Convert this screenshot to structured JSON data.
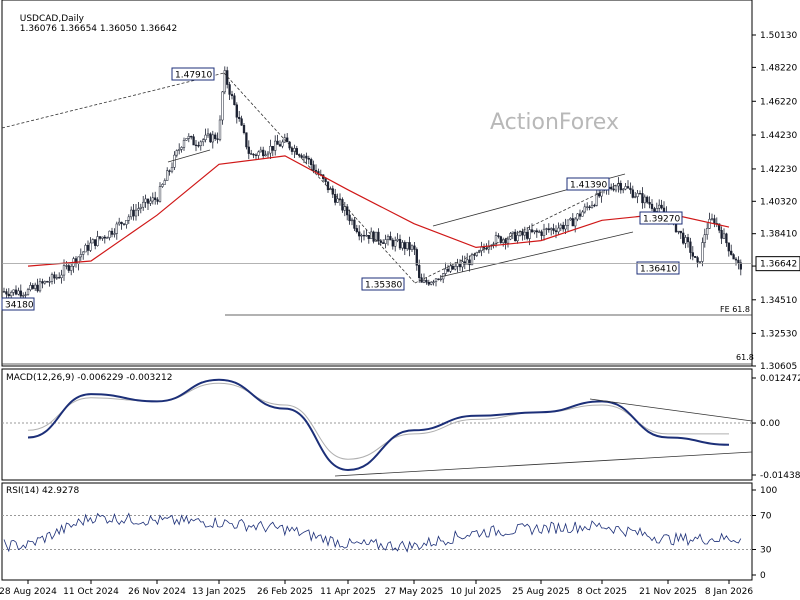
{
  "header": {
    "symbol": "USDCAD,Daily",
    "ohlc": "1.36076 1.36654 1.36050 1.36642"
  },
  "watermark": "ActionForex",
  "chart_data": [
    {
      "type": "candlestick",
      "title": "USDCAD,Daily",
      "price_axis": {
        "ticks": [
          "1.50130",
          "1.48220",
          "1.46220",
          "1.44230",
          "1.42230",
          "1.40320",
          "1.38410",
          "1.36500",
          "1.34510",
          "1.32530",
          "1.30605"
        ],
        "tick_values": [
          1.5013,
          1.4822,
          1.4622,
          1.4423,
          1.4223,
          1.4032,
          1.3841,
          1.365,
          1.3451,
          1.3253,
          1.30605
        ],
        "current_price": "1.36642",
        "current_value": 1.36642,
        "range": [
          1.303,
          1.518
        ]
      },
      "x_axis": {
        "labels": [
          "28 Aug 2024",
          "11 Oct 2024",
          "26 Nov 2024",
          "13 Jan 2025",
          "26 Feb 2025",
          "11 Apr 2025",
          "27 May 2025",
          "10 Jul 2025",
          "25 Aug 2025",
          "8 Oct 2025",
          "21 Nov 2025",
          "8 Jan 2026"
        ]
      },
      "price_path": [
        [
          "28 Aug 2024",
          1.35
        ],
        [
          "Sep 2024",
          1.359
        ],
        [
          "11 Oct 2024",
          1.378
        ],
        [
          "Oct 2024",
          1.385
        ],
        [
          "Nov 2024",
          1.4
        ],
        [
          "26 Nov 2024",
          1.405
        ],
        [
          "Dec 2024",
          1.442
        ],
        [
          "Dec 2024",
          1.438
        ],
        [
          "13 Jan 2025",
          1.442
        ],
        [
          "3 Feb 2025",
          1.4791
        ],
        [
          "Feb 2025",
          1.43
        ],
        [
          "26 Feb 2025",
          1.438
        ],
        [
          "Mar 2025",
          1.43
        ],
        [
          "11 Apr 2025",
          1.395
        ],
        [
          "Apr 2025",
          1.385
        ],
        [
          "27 May 2025",
          1.375
        ],
        [
          "Jun 2025",
          1.3538
        ],
        [
          "10 Jul 2025",
          1.37
        ],
        [
          "Jul 2025",
          1.38
        ],
        [
          "25 Aug 2025",
          1.385
        ],
        [
          "Sep 2025",
          1.39
        ],
        [
          "8 Oct 2025",
          1.408
        ],
        [
          "Oct 2025",
          1.4139
        ],
        [
          "21 Nov 2025",
          1.395
        ],
        [
          "Dec 2025",
          1.375
        ],
        [
          "Dec 2025",
          1.3641
        ],
        [
          "Dec 2025",
          1.388
        ],
        [
          "Dec 2025",
          1.3927
        ],
        [
          "8 Jan 2026",
          1.376
        ],
        [
          "Jan 2026",
          1.365
        ],
        [
          "Jan 2026",
          1.3664
        ]
      ],
      "moving_average": [
        [
          "28 Aug 2024",
          1.365
        ],
        [
          "11 Oct 2024",
          1.368
        ],
        [
          "26 Nov 2024",
          1.395
        ],
        [
          "13 Jan 2025",
          1.425
        ],
        [
          "26 Feb 2025",
          1.43
        ],
        [
          "11 Apr 2025",
          1.41
        ],
        [
          "27 May 2025",
          1.39
        ],
        [
          "10 Jul 2025",
          1.376
        ],
        [
          "25 Aug 2025",
          1.38
        ],
        [
          "8 Oct 2025",
          1.392
        ],
        [
          "21 Nov 2025",
          1.396
        ],
        [
          "8 Jan 2026",
          1.388
        ]
      ],
      "annotations": [
        {
          "label": "1.47910",
          "value": 1.4791
        },
        {
          "label": "1.41390",
          "value": 1.4139
        },
        {
          "label": "1.39270",
          "value": 1.3927
        },
        {
          "label": "1.36410",
          "value": 1.3641
        },
        {
          "label": "1.35380",
          "value": 1.3538
        },
        {
          "label": "34180",
          "value": 1.3418
        },
        {
          "label": "FE 61.8",
          "value": 1.338
        },
        {
          "label": "61.8",
          "value": 1.306
        }
      ]
    },
    {
      "type": "line",
      "title": "MACD(12,26,9) -0.006229 -0.003212",
      "y_ticks": [
        "0.012472",
        "0.00",
        "-0.014389"
      ],
      "y_tick_values": [
        0.012472,
        0.0,
        -0.014389
      ],
      "series": [
        {
          "name": "MACD",
          "points": [
            [
              "28 Aug 2024",
              -0.004
            ],
            [
              "11 Oct 2024",
              0.008
            ],
            [
              "26 Nov 2024",
              0.006
            ],
            [
              "13 Jan 2025",
              0.012
            ],
            [
              "26 Feb 2025",
              0.004
            ],
            [
              "11 Apr 2025",
              -0.013
            ],
            [
              "27 May 2025",
              -0.002
            ],
            [
              "10 Jul 2025",
              0.002
            ],
            [
              "25 Aug 2025",
              0.003
            ],
            [
              "8 Oct 2025",
              0.006
            ],
            [
              "21 Nov 2025",
              -0.004
            ],
            [
              "8 Jan 2026",
              -0.006
            ]
          ]
        },
        {
          "name": "Signal",
          "points": [
            [
              "28 Aug 2024",
              -0.002
            ],
            [
              "11 Oct 2024",
              0.007
            ],
            [
              "26 Nov 2024",
              0.006
            ],
            [
              "13 Jan 2025",
              0.011
            ],
            [
              "26 Feb 2025",
              0.005
            ],
            [
              "11 Apr 2025",
              -0.01
            ],
            [
              "27 May 2025",
              -0.003
            ],
            [
              "10 Jul 2025",
              0.001
            ],
            [
              "25 Aug 2025",
              0.003
            ],
            [
              "8 Oct 2025",
              0.005
            ],
            [
              "21 Nov 2025",
              -0.003
            ],
            [
              "8 Jan 2026",
              -0.003
            ]
          ]
        }
      ]
    },
    {
      "type": "line",
      "title": "RSI(14) 42.9278",
      "y_ticks": [
        "100",
        "70",
        "30",
        "0"
      ],
      "y_tick_values": [
        100,
        70,
        30,
        0
      ],
      "levels": [
        70,
        30
      ],
      "series": [
        {
          "name": "RSI",
          "points": [
            [
              "28 Aug 2024",
              35
            ],
            [
              "11 Oct 2024",
              68
            ],
            [
              "26 Nov 2024",
              64
            ],
            [
              "13 Jan 2025",
              62
            ],
            [
              "26 Feb 2025",
              54
            ],
            [
              "11 Apr 2025",
              36
            ],
            [
              "27 May 2025",
              34
            ],
            [
              "10 Jul 2025",
              50
            ],
            [
              "25 Aug 2025",
              55
            ],
            [
              "8 Oct 2025",
              58
            ],
            [
              "21 Nov 2025",
              42
            ],
            [
              "8 Jan 2026",
              43
            ]
          ]
        }
      ]
    }
  ]
}
